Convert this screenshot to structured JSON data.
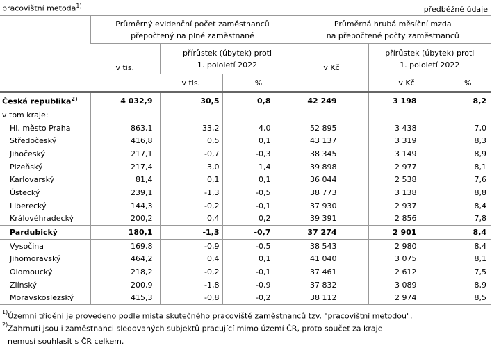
{
  "header": {
    "left": "pracovištní metoda",
    "left_note": "1)",
    "right": "předběžné údaje"
  },
  "columns": {
    "group1": {
      "title": [
        "Průměrný evidenční počet zaměstnanců",
        "přepočtený na plně zaměstnané"
      ],
      "unit": "v tis.",
      "change": [
        "přírůstek (úbytek) proti",
        "1. pololetí 2022"
      ],
      "change_units": [
        "v  tis.",
        "%"
      ]
    },
    "group2": {
      "title": [
        "Průměrná hrubá měsíční mzda",
        "na přepočtené počty zaměstnanců"
      ],
      "unit": "v Kč",
      "change": [
        "přírůstek (úbytek) proti",
        "1. pololetí 2022"
      ],
      "change_units": [
        "v  Kč",
        "%"
      ]
    }
  },
  "table": {
    "rows": [
      {
        "name": "Česká republika",
        "note": "2)",
        "values": [
          "4 032,9",
          "30,5",
          "0,8",
          "42 249",
          "3 198",
          "8,2"
        ]
      },
      {
        "name": "v tom kraje:",
        "values": []
      },
      {
        "name": "Hl. město Praha",
        "values": [
          "863,1",
          "33,2",
          "4,0",
          "52 895",
          "3 438",
          "7,0"
        ]
      },
      {
        "name": "Středočeský",
        "values": [
          "416,8",
          "0,5",
          "0,1",
          "43 137",
          "3 319",
          "8,3"
        ]
      },
      {
        "name": "Jihočeský",
        "values": [
          "217,1",
          "-0,7",
          "-0,3",
          "38 345",
          "3 149",
          "8,9"
        ]
      },
      {
        "name": "Plzeňský",
        "values": [
          "217,4",
          "3,0",
          "1,4",
          "39 898",
          "2 977",
          "8,1"
        ]
      },
      {
        "name": "Karlovarský",
        "values": [
          "81,4",
          "0,1",
          "0,1",
          "36 044",
          "2 538",
          "7,6"
        ]
      },
      {
        "name": "Ústecký",
        "values": [
          "239,1",
          "-1,3",
          "-0,5",
          "38 773",
          "3 138",
          "8,8"
        ]
      },
      {
        "name": "Liberecký",
        "values": [
          "144,3",
          "-0,2",
          "-0,1",
          "37 930",
          "2 937",
          "8,4"
        ]
      },
      {
        "name": "Královéhradecký",
        "values": [
          "200,2",
          "0,4",
          "0,2",
          "39 391",
          "2 856",
          "7,8"
        ]
      },
      {
        "name": "Pardubický",
        "values": [
          "180,1",
          "-1,3",
          "-0,7",
          "37 274",
          "2 901",
          "8,4"
        ]
      },
      {
        "name": "Vysočina",
        "values": [
          "169,8",
          "-0,9",
          "-0,5",
          "38 543",
          "2 980",
          "8,4"
        ]
      },
      {
        "name": "Jihomoravský",
        "values": [
          "464,2",
          "0,4",
          "0,1",
          "41 040",
          "3 075",
          "8,1"
        ]
      },
      {
        "name": "Olomoucký",
        "values": [
          "218,2",
          "-0,2",
          "-0,1",
          "37 461",
          "2 612",
          "7,5"
        ]
      },
      {
        "name": "Zlínský",
        "values": [
          "200,9",
          "-1,8",
          "-0,9",
          "37 832",
          "3 089",
          "8,9"
        ]
      },
      {
        "name": "Moravskoslezský",
        "values": [
          "415,3",
          "-0,8",
          "-0,2",
          "38 112",
          "2 974",
          "8,5"
        ]
      }
    ]
  },
  "footnotes": [
    {
      "mark": "1)",
      "lines": [
        "Územní třídění je provedeno podle místa skutečného pracoviště zaměstnanců tzv. \"pracovištní metodou\"."
      ]
    },
    {
      "mark": "2)",
      "lines": [
        "Zahrnuti jsou i zaměstnanci sledovaných subjektů pracující mimo území ČR, proto součet za kraje",
        "nemusí souhlasit s ČR celkem."
      ]
    }
  ]
}
